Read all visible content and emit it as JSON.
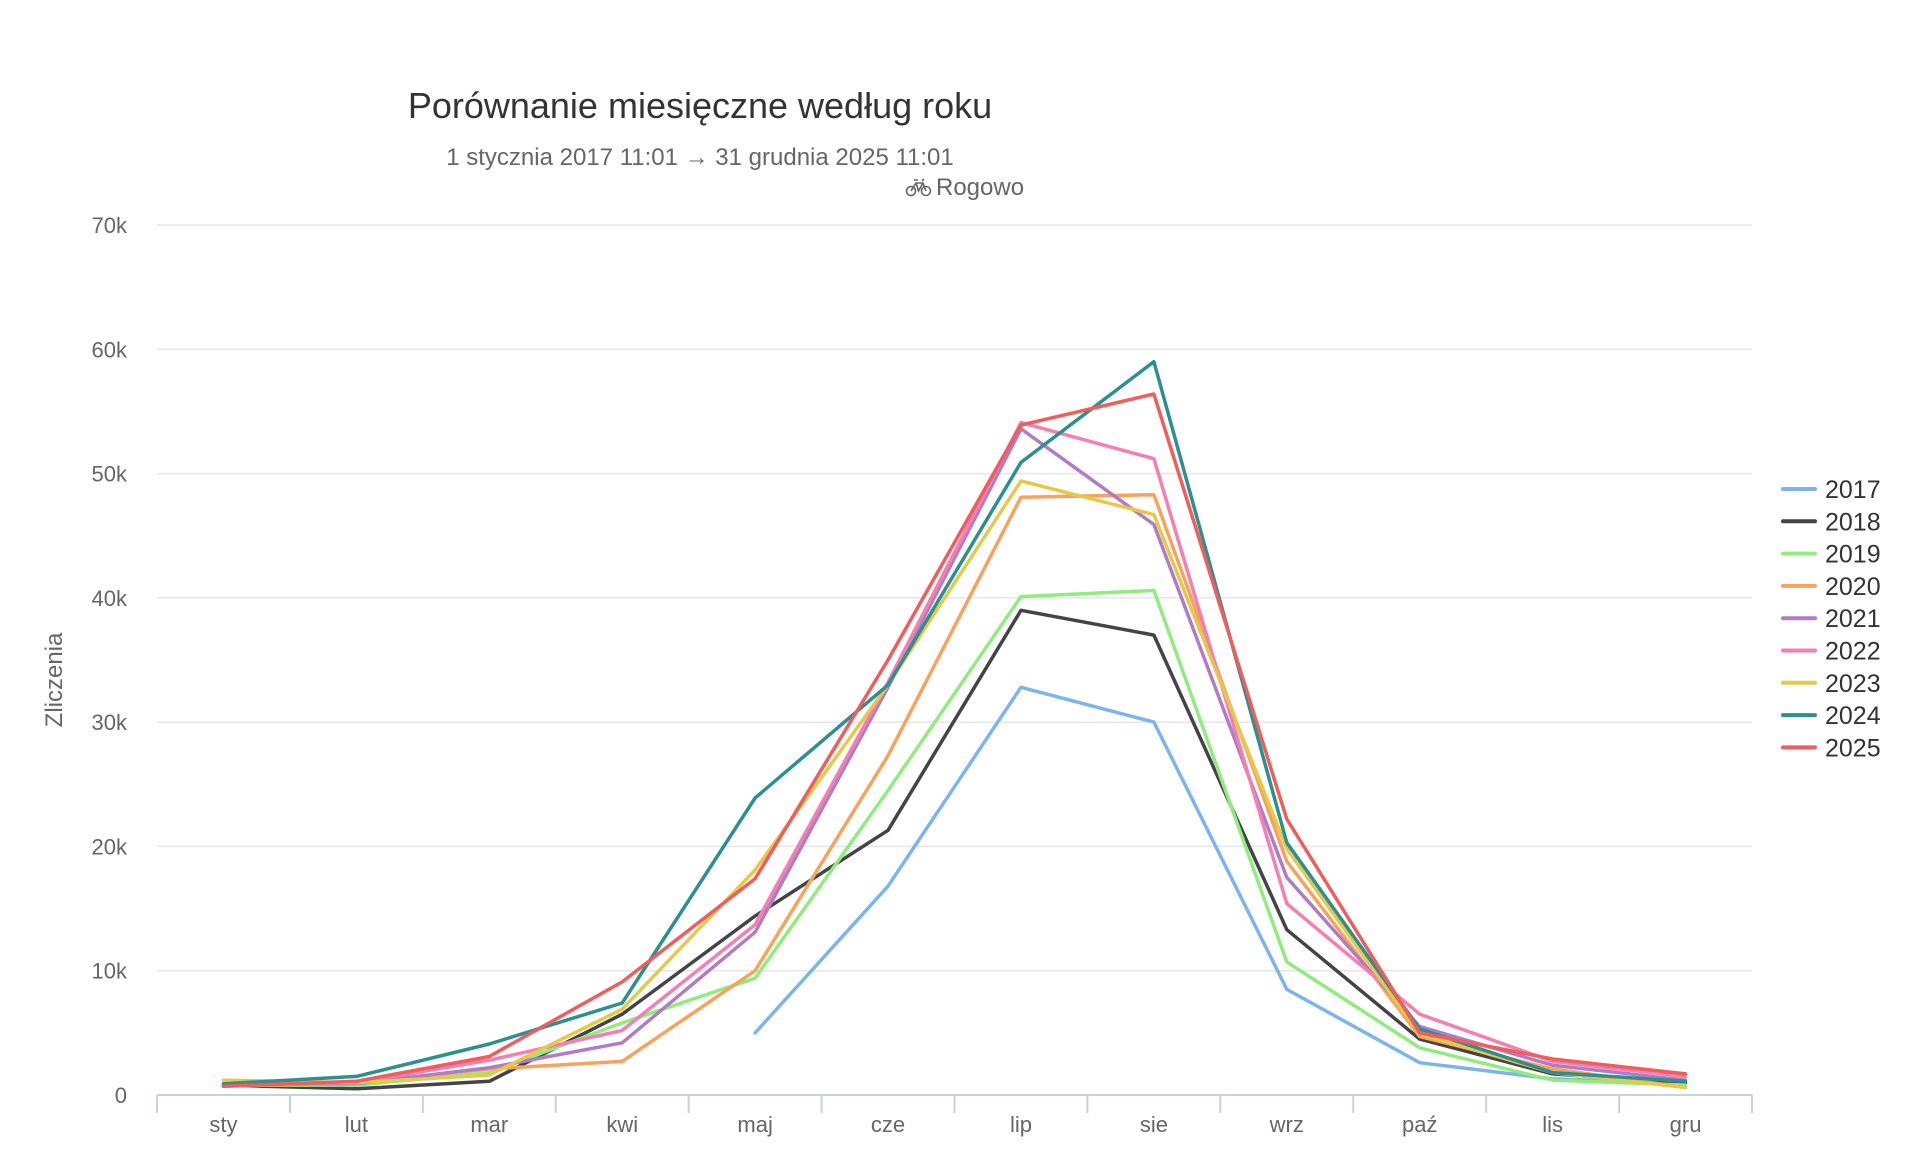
{
  "chart_data": {
    "type": "line",
    "title": "Porównanie miesięczne według roku",
    "subtitle": "1 stycznia 2017 11:01 → 31 grudnia 2025 11:01",
    "location": "Rogowo",
    "location_icon": "bicycle-icon",
    "xlabel": "",
    "ylabel": "Zliczenia",
    "ylim": [
      0,
      70000
    ],
    "yticks": [
      0,
      10000,
      20000,
      30000,
      40000,
      50000,
      60000,
      70000
    ],
    "ytick_labels": [
      "0",
      "10k",
      "20k",
      "30k",
      "40k",
      "50k",
      "60k",
      "70k"
    ],
    "categories": [
      "sty",
      "lut",
      "mar",
      "kwi",
      "maj",
      "cze",
      "lip",
      "sie",
      "wrz",
      "paź",
      "lis",
      "gru"
    ],
    "grid": true,
    "legend_position": "right",
    "series": [
      {
        "name": "2017",
        "color": "#7cb5ec",
        "values": [
          null,
          null,
          null,
          null,
          5000,
          16800,
          32800,
          30000,
          8500,
          2600,
          1300,
          900
        ]
      },
      {
        "name": "2018",
        "color": "#434348",
        "values": [
          800,
          500,
          1100,
          6500,
          14400,
          21300,
          39000,
          37000,
          13300,
          4500,
          1700,
          1000
        ]
      },
      {
        "name": "2019",
        "color": "#90ed7d",
        "values": [
          800,
          800,
          1800,
          5800,
          9400,
          24500,
          40100,
          40600,
          10700,
          3800,
          1200,
          800
        ]
      },
      {
        "name": "2020",
        "color": "#f7a35c",
        "values": [
          700,
          1000,
          2100,
          2700,
          10000,
          27300,
          48100,
          48300,
          18800,
          4700,
          2100,
          600
        ]
      },
      {
        "name": "2021",
        "color": "#b07cc6",
        "values": [
          900,
          900,
          2200,
          4200,
          13100,
          32800,
          53600,
          45900,
          17500,
          5500,
          2400,
          1200
        ]
      },
      {
        "name": "2022",
        "color": "#f47fb0",
        "values": [
          900,
          1000,
          2800,
          5200,
          13700,
          33200,
          54100,
          51200,
          15400,
          6500,
          2700,
          1500
        ]
      },
      {
        "name": "2023",
        "color": "#e6c84a",
        "values": [
          1200,
          1000,
          1600,
          6900,
          18100,
          33000,
          49400,
          46700,
          19800,
          4900,
          1800,
          600
        ]
      },
      {
        "name": "2024",
        "color": "#2b908f",
        "values": [
          900,
          1500,
          4100,
          7400,
          23900,
          33000,
          50900,
          59000,
          20300,
          5300,
          1800,
          1100
        ]
      },
      {
        "name": "2025",
        "color": "#f15c5c",
        "values": [
          700,
          1100,
          3100,
          9100,
          17400,
          35000,
          53900,
          56400,
          22200,
          5000,
          2900,
          1700
        ]
      }
    ]
  }
}
